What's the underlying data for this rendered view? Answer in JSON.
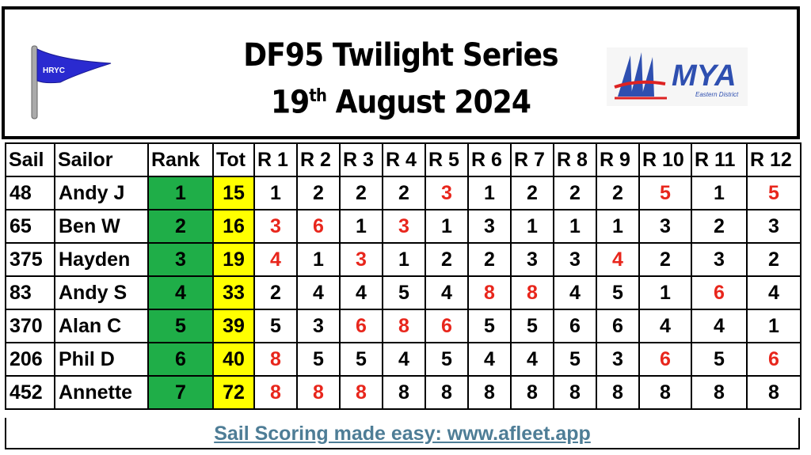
{
  "header": {
    "title_line1": "DF95 Twilight Series",
    "title_day": "19",
    "title_suffix": "th",
    "title_rest": "August 2024",
    "club_logo_text": "HRYC",
    "org_logo_text": "MYA",
    "org_logo_subtext": "Eastern District"
  },
  "colors": {
    "rank": "#1fae48",
    "total": "#ffff00",
    "discard": "#e8261c",
    "link": "#4e7d96"
  },
  "table": {
    "columns": [
      "Sail",
      "Sailor",
      "Rank",
      "Tot",
      "R 1",
      "R 2",
      "R 3",
      "R 4",
      "R 5",
      "R 6",
      "R 7",
      "R 8",
      "R 9",
      "R 10",
      "R 11",
      "R 12"
    ],
    "rows": [
      {
        "sail": "48",
        "sailor": "Andy J",
        "rank": "1",
        "tot": "15",
        "scores": [
          {
            "v": "1"
          },
          {
            "v": "2"
          },
          {
            "v": "2"
          },
          {
            "v": "2"
          },
          {
            "v": "3",
            "discard": true
          },
          {
            "v": "1"
          },
          {
            "v": "2"
          },
          {
            "v": "2"
          },
          {
            "v": "2"
          },
          {
            "v": "5",
            "discard": true
          },
          {
            "v": "1"
          },
          {
            "v": "5",
            "discard": true
          }
        ]
      },
      {
        "sail": "65",
        "sailor": "Ben W",
        "rank": "2",
        "tot": "16",
        "scores": [
          {
            "v": "3",
            "discard": true
          },
          {
            "v": "6",
            "discard": true
          },
          {
            "v": "1"
          },
          {
            "v": "3",
            "discard": true
          },
          {
            "v": "1"
          },
          {
            "v": "3"
          },
          {
            "v": "1"
          },
          {
            "v": "1"
          },
          {
            "v": "1"
          },
          {
            "v": "3"
          },
          {
            "v": "2"
          },
          {
            "v": "3"
          }
        ]
      },
      {
        "sail": "375",
        "sailor": "Hayden",
        "rank": "3",
        "tot": "19",
        "scores": [
          {
            "v": "4",
            "discard": true
          },
          {
            "v": "1"
          },
          {
            "v": "3",
            "discard": true
          },
          {
            "v": "1"
          },
          {
            "v": "2"
          },
          {
            "v": "2"
          },
          {
            "v": "3"
          },
          {
            "v": "3"
          },
          {
            "v": "4",
            "discard": true
          },
          {
            "v": "2"
          },
          {
            "v": "3"
          },
          {
            "v": "2"
          }
        ]
      },
      {
        "sail": "83",
        "sailor": "Andy S",
        "rank": "4",
        "tot": "33",
        "scores": [
          {
            "v": "2"
          },
          {
            "v": "4"
          },
          {
            "v": "4"
          },
          {
            "v": "5"
          },
          {
            "v": "4"
          },
          {
            "v": "8",
            "discard": true
          },
          {
            "v": "8",
            "discard": true
          },
          {
            "v": "4"
          },
          {
            "v": "5"
          },
          {
            "v": "1"
          },
          {
            "v": "6",
            "discard": true
          },
          {
            "v": "4"
          }
        ]
      },
      {
        "sail": "370",
        "sailor": "Alan C",
        "rank": "5",
        "tot": "39",
        "scores": [
          {
            "v": "5"
          },
          {
            "v": "3"
          },
          {
            "v": "6",
            "discard": true
          },
          {
            "v": "8",
            "discard": true
          },
          {
            "v": "6",
            "discard": true
          },
          {
            "v": "5"
          },
          {
            "v": "5"
          },
          {
            "v": "6"
          },
          {
            "v": "6"
          },
          {
            "v": "4"
          },
          {
            "v": "4"
          },
          {
            "v": "1"
          }
        ]
      },
      {
        "sail": "206",
        "sailor": "Phil D",
        "rank": "6",
        "tot": "40",
        "scores": [
          {
            "v": "8",
            "discard": true
          },
          {
            "v": "5"
          },
          {
            "v": "5"
          },
          {
            "v": "4"
          },
          {
            "v": "5"
          },
          {
            "v": "4"
          },
          {
            "v": "4"
          },
          {
            "v": "5"
          },
          {
            "v": "3"
          },
          {
            "v": "6",
            "discard": true
          },
          {
            "v": "5"
          },
          {
            "v": "6",
            "discard": true
          }
        ]
      },
      {
        "sail": "452",
        "sailor": "Annette",
        "rank": "7",
        "tot": "72",
        "scores": [
          {
            "v": "8",
            "discard": true
          },
          {
            "v": "8",
            "discard": true
          },
          {
            "v": "8",
            "discard": true
          },
          {
            "v": "8"
          },
          {
            "v": "8"
          },
          {
            "v": "8"
          },
          {
            "v": "8"
          },
          {
            "v": "8"
          },
          {
            "v": "8"
          },
          {
            "v": "8"
          },
          {
            "v": "8"
          },
          {
            "v": "8"
          }
        ]
      }
    ]
  },
  "footer": {
    "link_text": "Sail Scoring made easy: www.afleet.app"
  }
}
